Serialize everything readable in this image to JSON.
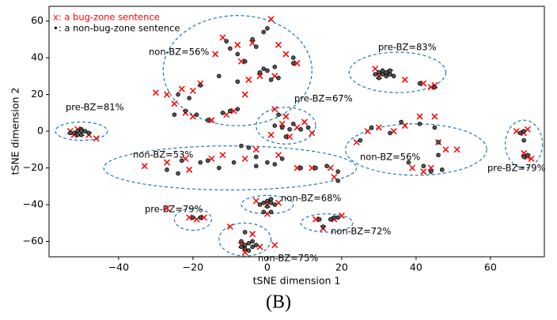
{
  "chart_data": {
    "type": "scatter",
    "xlabel": "tSNE dimension 1",
    "ylabel": "tSNE dimension 2",
    "caption": "(B)",
    "xlim": [
      -58.7,
      74.5
    ],
    "ylim": [
      -68.4,
      68
    ],
    "xticks": [
      {
        "value": -40,
        "label": "−40"
      },
      {
        "value": -20,
        "label": "−20"
      },
      0,
      20,
      40,
      60
    ],
    "yticks": [
      {
        "value": -60,
        "label": "−60"
      },
      {
        "value": -40,
        "label": "−40"
      },
      {
        "value": -20,
        "label": "−20"
      },
      0,
      20,
      40,
      60
    ],
    "legend": "upper left",
    "series": [
      {
        "name": "x: a bug-zone sentence",
        "color": "#ff0000",
        "marker": "x",
        "x": [
          -53,
          -52,
          -50,
          -48,
          -46,
          -51,
          1,
          -12,
          -8,
          -14,
          -4,
          -18,
          -20,
          -23,
          -25,
          -22,
          -20,
          -15,
          -11,
          -9,
          -6,
          -5,
          -2,
          2,
          5,
          3,
          -30,
          -27,
          -7,
          8,
          -27,
          -22,
          -15,
          -12,
          -6,
          -3,
          3,
          8,
          12,
          17,
          18,
          -21,
          -33,
          2,
          5,
          8,
          4,
          1,
          6,
          12,
          10,
          29,
          30,
          33,
          37,
          44,
          45,
          42,
          24,
          27,
          34,
          37,
          41,
          45,
          46,
          48,
          51,
          44,
          42,
          39,
          30,
          67,
          69,
          70,
          69,
          70,
          71,
          -3,
          0,
          3,
          0,
          -21,
          -19,
          -17,
          -27,
          13,
          15,
          18,
          20,
          -10,
          -7,
          -4,
          -2,
          2,
          -6
        ],
        "values": [
          0,
          -2,
          -1,
          -2,
          -4,
          1,
          61,
          51,
          47,
          42,
          48,
          26,
          22,
          23,
          15,
          10,
          8,
          6,
          9,
          11,
          20,
          28,
          30,
          30,
          42,
          47,
          21,
          20,
          38,
          37,
          -17,
          -15,
          -15,
          -13,
          -15,
          -10,
          -13,
          -20,
          -20,
          -20,
          -25,
          -21,
          -19,
          12,
          8,
          2,
          4,
          -2,
          -3,
          -1,
          5,
          34,
          30,
          32,
          28,
          24,
          25,
          26,
          -6,
          0,
          0,
          3,
          8,
          8,
          -6,
          -10,
          -10,
          -20,
          -22,
          -20,
          2,
          0,
          -1,
          1,
          -12,
          -14,
          -15,
          -38,
          -40,
          -39,
          -45,
          -47,
          -48,
          -47,
          -42,
          -48,
          -53,
          -48,
          -46,
          -52,
          -62,
          -56,
          -63,
          -62,
          -66
        ]
      },
      {
        "name": "•: a non-bug-zone sentence",
        "color": "#000000",
        "marker": "o",
        "x": [
          -52,
          -51,
          -50,
          -49,
          -50,
          -51,
          -48,
          -53,
          -50,
          0,
          -1,
          -11,
          -10,
          -8,
          -3,
          -6,
          -1,
          0,
          2,
          -2,
          1,
          3,
          7,
          7,
          -18,
          -21,
          -22,
          -19,
          -12,
          -10,
          -8,
          -16,
          -24,
          -25,
          -13,
          -4,
          -8,
          -27,
          -23,
          -18,
          -16,
          -9,
          -7,
          -5,
          -3,
          0,
          2,
          4,
          9,
          13,
          16,
          19,
          19,
          -13,
          -24,
          -3,
          2,
          4,
          6,
          9,
          11,
          3,
          5,
          7,
          30,
          31,
          32,
          33,
          31,
          29,
          32,
          34,
          30,
          33,
          41,
          45,
          28,
          33,
          36,
          41,
          45,
          46,
          46,
          42,
          44,
          47,
          38,
          25,
          68,
          69,
          70,
          69,
          69,
          0,
          -1,
          1,
          2,
          -2,
          0,
          1,
          -1,
          1,
          -20,
          -18,
          14,
          17,
          18,
          19,
          15,
          -7,
          -6,
          -5,
          -4,
          -3,
          -6,
          -5,
          -7,
          -4,
          -6
        ],
        "values": [
          -1,
          0,
          -2,
          0,
          1,
          -2,
          -1,
          -1,
          0,
          56,
          54,
          49,
          45,
          42,
          46,
          38,
          34,
          33,
          35,
          32,
          28,
          29,
          37,
          40,
          25,
          18,
          11,
          9,
          10,
          11,
          12,
          6,
          20,
          9,
          30,
          50,
          27,
          -21,
          -16,
          -17,
          -16,
          -17,
          -8,
          -9,
          -19,
          -17,
          -18,
          -15,
          -20,
          -20,
          -19,
          -22,
          -27,
          -20,
          -23,
          -14,
          3,
          2,
          1,
          1,
          2,
          9,
          -3,
          4,
          32,
          31,
          30,
          31,
          33,
          31,
          32,
          30,
          29,
          33,
          26,
          24,
          2,
          -1,
          5,
          4,
          2,
          -6,
          -13,
          -19,
          -22,
          -21,
          -17,
          -5,
          -1,
          0,
          -13,
          -14,
          -5,
          -38,
          -39,
          -39,
          -40,
          -40,
          -41,
          -37,
          -44,
          -44,
          -47,
          -47,
          -48,
          -48,
          -47,
          -47,
          -52,
          -60,
          -62,
          -61,
          -63,
          -62,
          -64,
          -65,
          -63,
          -60,
          -55
        ]
      }
    ],
    "annotations": [
      "non-BZ=56%",
      "pre-BZ=81%",
      "non-BZ=53%",
      "pre-BZ=67%",
      "pre-BZ=83%",
      "non-BZ=56%",
      "pre-BZ=79%",
      "non-BZ=68%",
      "pre-BZ=79%",
      "non-BZ=72%",
      "non-BZ=75%"
    ]
  }
}
